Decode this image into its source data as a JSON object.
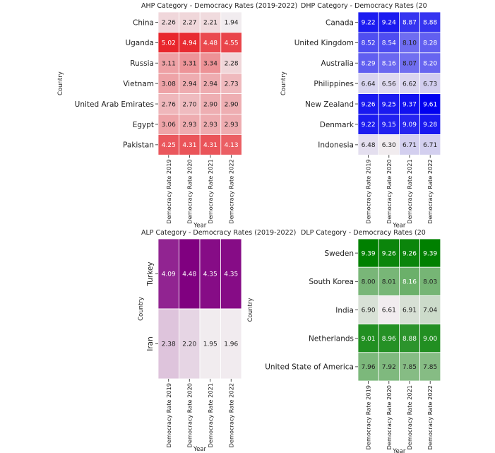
{
  "chart_data": [
    {
      "type": "heatmap",
      "title": "AHP Category - Democracy Rates (2019-2022)",
      "xlabel": "Year",
      "ylabel": "Country",
      "color": "#e8262c",
      "vmin": 1.94,
      "vmax": 5.02,
      "columns": [
        "Democracy Rate 2019",
        "Democracy Rate 2020",
        "Democracy Rate 2021",
        "Democracy Rate 2022"
      ],
      "rows": [
        "China",
        "Uganda",
        "Russia",
        "Vietnam",
        "United Arab Emirates",
        "Egypt",
        "Pakistan"
      ],
      "values": [
        [
          2.26,
          2.27,
          2.21,
          1.94
        ],
        [
          5.02,
          4.94,
          4.48,
          4.55
        ],
        [
          3.11,
          3.31,
          3.34,
          2.28
        ],
        [
          3.08,
          2.94,
          2.94,
          2.73
        ],
        [
          2.76,
          2.7,
          2.9,
          2.9
        ],
        [
          3.06,
          2.93,
          2.93,
          2.93
        ],
        [
          4.25,
          4.31,
          4.31,
          4.13
        ]
      ],
      "value_labels": [
        [
          "2.26",
          "2.27",
          "2.21",
          "1.94"
        ],
        [
          "5.02",
          "4.94",
          "4.48",
          "4.55"
        ],
        [
          "3.11",
          "3.31",
          "3.34",
          "2.28"
        ],
        [
          "3.08",
          "2.94",
          "2.94",
          "2.73"
        ],
        [
          "2.76",
          "2.70",
          "2.90",
          "2.90"
        ],
        [
          "3.06",
          "2.93",
          "2.93",
          "2.93"
        ],
        [
          "4.25",
          "4.31",
          "4.31",
          "4.13"
        ]
      ]
    },
    {
      "type": "heatmap",
      "title": "DHP Category - Democracy Rates (20",
      "xlabel": "Year",
      "ylabel": "Country",
      "color": "#0000f0",
      "vmin": 6.3,
      "vmax": 9.61,
      "columns": [
        "Democracy Rate 2019",
        "Democracy Rate 2020",
        "Democracy Rate 2021",
        "Democracy Rate 2022"
      ],
      "rows": [
        "Canada",
        "United Kingdom",
        "Australia",
        "Philippines",
        "New Zealand",
        "Denmark",
        "Indonesia"
      ],
      "values": [
        [
          9.22,
          9.24,
          8.87,
          8.88
        ],
        [
          8.52,
          8.54,
          8.1,
          8.28
        ],
        [
          8.29,
          8.16,
          8.07,
          8.2
        ],
        [
          6.64,
          6.56,
          6.62,
          6.73
        ],
        [
          9.26,
          9.25,
          9.37,
          9.61
        ],
        [
          9.22,
          9.15,
          9.09,
          9.28
        ],
        [
          6.48,
          6.3,
          6.71,
          6.71
        ]
      ],
      "value_labels": [
        [
          "9.22",
          "9.24",
          "8.87",
          "8.88"
        ],
        [
          "8.52",
          "8.54",
          "8.10",
          "8.28"
        ],
        [
          "8.29",
          "8.16",
          "8.07",
          "8.20"
        ],
        [
          "6.64",
          "6.56",
          "6.62",
          "6.73"
        ],
        [
          "9.26",
          "9.25",
          "9.37",
          "9.61"
        ],
        [
          "9.22",
          "9.15",
          "9.09",
          "9.28"
        ],
        [
          "6.48",
          "6.30",
          "6.71",
          "6.71"
        ]
      ]
    },
    {
      "type": "heatmap",
      "title": "ALP Category - Democracy Rates (2019-2022)",
      "xlabel": "Year",
      "ylabel": "Country",
      "color": "#800080",
      "vmin": 1.95,
      "vmax": 4.48,
      "row_label_rotated": true,
      "columns": [
        "Democracy Rate 2019",
        "Democracy Rate 2020",
        "Democracy Rate 2021",
        "Democracy Rate 2022"
      ],
      "rows": [
        "Turkey",
        "Iran"
      ],
      "values": [
        [
          4.09,
          4.48,
          4.35,
          4.35
        ],
        [
          2.38,
          2.2,
          1.95,
          1.96
        ]
      ],
      "value_labels": [
        [
          "4.09",
          "4.48",
          "4.35",
          "4.35"
        ],
        [
          "2.38",
          "2.20",
          "1.95",
          "1.96"
        ]
      ]
    },
    {
      "type": "heatmap",
      "title": "DLP Category - Democracy Rates (20",
      "xlabel": "Year",
      "ylabel": "Country",
      "color": "#008000",
      "vmin": 6.61,
      "vmax": 9.39,
      "columns": [
        "Democracy Rate 2019",
        "Democracy Rate 2020",
        "Democracy Rate 2021",
        "Democracy Rate 2022"
      ],
      "rows": [
        "Sweden",
        "South Korea",
        "India",
        "Netherlands",
        "United State of America"
      ],
      "values": [
        [
          9.39,
          9.26,
          9.26,
          9.39
        ],
        [
          8.0,
          8.01,
          8.16,
          8.03
        ],
        [
          6.9,
          6.61,
          6.91,
          7.04
        ],
        [
          9.01,
          8.96,
          8.88,
          9.0
        ],
        [
          7.96,
          7.92,
          7.85,
          7.85
        ]
      ],
      "value_labels": [
        [
          "9.39",
          "9.26",
          "9.26",
          "9.39"
        ],
        [
          "8.00",
          "8.01",
          "8.16",
          "8.03"
        ],
        [
          "6.90",
          "6.61",
          "6.91",
          "7.04"
        ],
        [
          "9.01",
          "8.96",
          "8.88",
          "9.00"
        ],
        [
          "7.96",
          "7.92",
          "7.85",
          "7.85"
        ]
      ]
    }
  ]
}
